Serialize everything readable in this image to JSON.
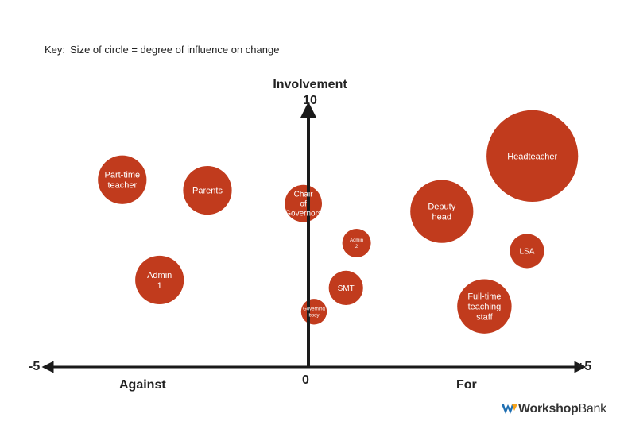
{
  "key": {
    "label": "Key:",
    "text": "Size of circle = degree of influence on change"
  },
  "axis": {
    "y_title": "Involvement",
    "y_max_label": "10",
    "x_min_label": "-5",
    "x_zero_label": "0",
    "x_max_label": "+5",
    "against_label": "Against",
    "for_label": "For"
  },
  "colors": {
    "bubble": "#c13b1d",
    "axis": "#1a1a1a",
    "text_on_bubble": "#ffffff"
  },
  "logo": {
    "part1": "Workshop",
    "part2": "Bank",
    "icon": "workshopbank-logo-icon"
  },
  "chart_data": {
    "type": "bubble",
    "title": "",
    "xlabel": "Against / For",
    "ylabel": "Involvement",
    "xlim": [
      -5,
      5
    ],
    "ylim": [
      0,
      10
    ],
    "size_meaning": "degree of influence on change",
    "points": [
      {
        "label": "Headteacher",
        "x": 4.1,
        "y": 8.0,
        "size": 3.2
      },
      {
        "label": "Part-time teacher",
        "x": -3.6,
        "y": 7.1,
        "size": 1.7
      },
      {
        "label": "Parents",
        "x": -2.0,
        "y": 6.7,
        "size": 1.7
      },
      {
        "label": "Chair of Governors",
        "x": -0.2,
        "y": 6.2,
        "size": 1.3
      },
      {
        "label": "Deputy head",
        "x": 2.4,
        "y": 5.9,
        "size": 2.2
      },
      {
        "label": "Admin 2",
        "x": 0.8,
        "y": 4.7,
        "size": 1.0
      },
      {
        "label": "LSA",
        "x": 4.0,
        "y": 4.4,
        "size": 1.2
      },
      {
        "label": "Admin 1",
        "x": -2.9,
        "y": 3.3,
        "size": 1.7
      },
      {
        "label": "SMT",
        "x": 0.6,
        "y": 3.0,
        "size": 1.2
      },
      {
        "label": "Full-time teaching staff",
        "x": 3.2,
        "y": 2.3,
        "size": 1.9
      },
      {
        "label": "Governing body",
        "x": 0.0,
        "y": 2.1,
        "size": 0.9
      }
    ]
  }
}
